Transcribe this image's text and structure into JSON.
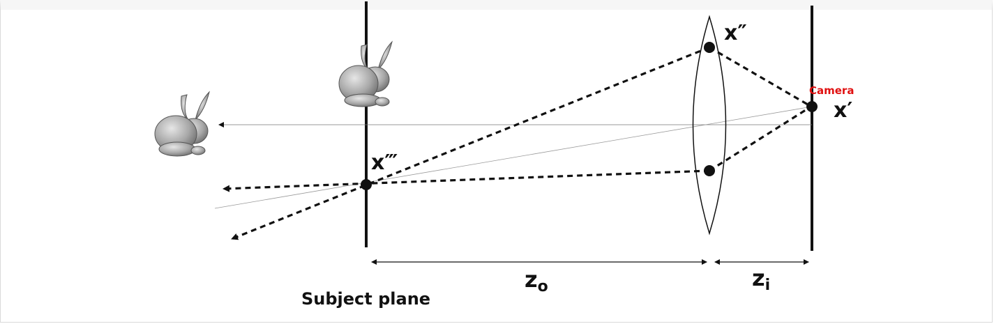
{
  "labels": {
    "x_double_prime": "x″",
    "x_prime": "x′",
    "x_triple_prime": "x‴",
    "camera": "Camera",
    "z_o": "z",
    "z_o_sub": "o",
    "z_i": "z",
    "z_i_sub": "i",
    "subject_plane": "Subject plane"
  },
  "colors": {
    "line": "#111111",
    "camera_label": "#e01010",
    "bunny": "#9a9a9a"
  },
  "icons": {
    "bunny_left": "bunny-icon",
    "bunny_top": "bunny-icon"
  }
}
